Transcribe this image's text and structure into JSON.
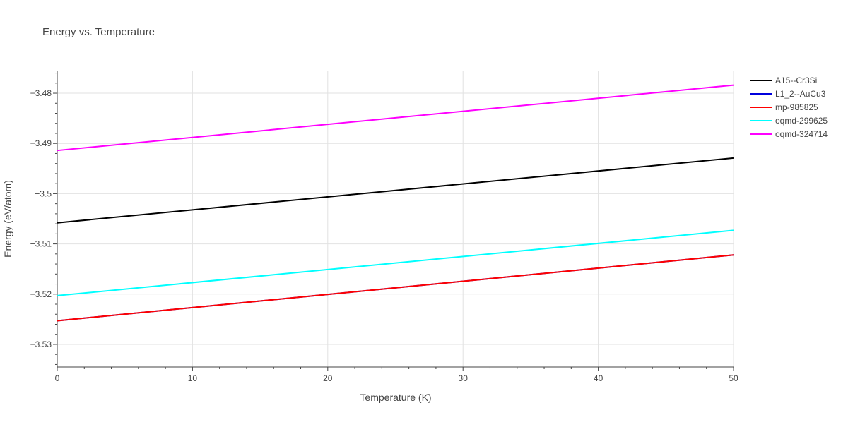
{
  "chart_data": {
    "type": "line",
    "title": "Energy vs. Temperature",
    "xlabel": "Temperature (K)",
    "ylabel": "Energy (eV/atom)",
    "xlim": [
      0,
      50
    ],
    "ylim": [
      -3.5345,
      -3.4755
    ],
    "x_ticks": [
      0,
      10,
      20,
      30,
      40,
      50
    ],
    "x_tick_labels": [
      "0",
      "10",
      "20",
      "30",
      "40",
      "50"
    ],
    "y_ticks": [
      -3.53,
      -3.52,
      -3.51,
      -3.5,
      -3.49,
      -3.48
    ],
    "y_tick_labels": [
      "−3.53",
      "−3.52",
      "−3.51",
      "−3.5",
      "−3.49",
      "−3.48"
    ],
    "grid": true,
    "legend_position": "top-right",
    "series": [
      {
        "name": "A15--Cr3Si",
        "color": "#000000",
        "x": [
          0,
          50
        ],
        "y": [
          -3.5058,
          -3.4929
        ]
      },
      {
        "name": "L1_2--AuCu3",
        "color": "#0000dd",
        "x": [
          0,
          50
        ],
        "y": [
          -3.5253,
          -3.5122
        ]
      },
      {
        "name": "mp-985825",
        "color": "#ff0000",
        "x": [
          0,
          50
        ],
        "y": [
          -3.5253,
          -3.5122
        ]
      },
      {
        "name": "oqmd-299625",
        "color": "#00ffff",
        "x": [
          0,
          50
        ],
        "y": [
          -3.5203,
          -3.5073
        ]
      },
      {
        "name": "oqmd-324714",
        "color": "#ff00ff",
        "x": [
          0,
          50
        ],
        "y": [
          -3.4914,
          -3.4784
        ]
      }
    ]
  }
}
